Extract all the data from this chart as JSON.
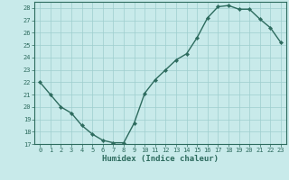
{
  "x": [
    0,
    1,
    2,
    3,
    4,
    5,
    6,
    7,
    8,
    9,
    10,
    11,
    12,
    13,
    14,
    15,
    16,
    17,
    18,
    19,
    20,
    21,
    22,
    23
  ],
  "y": [
    22,
    21,
    20,
    19.5,
    18.5,
    17.8,
    17.3,
    17.1,
    17.1,
    18.7,
    21.1,
    22.2,
    23.0,
    23.8,
    24.3,
    25.6,
    27.2,
    28.1,
    28.2,
    27.9,
    27.9,
    27.1,
    26.4,
    25.2
  ],
  "xlabel": "Humidex (Indice chaleur)",
  "ylim": [
    17,
    28.5
  ],
  "yticks": [
    17,
    18,
    19,
    20,
    21,
    22,
    23,
    24,
    25,
    26,
    27,
    28
  ],
  "xticks": [
    0,
    1,
    2,
    3,
    4,
    5,
    6,
    7,
    8,
    9,
    10,
    11,
    12,
    13,
    14,
    15,
    16,
    17,
    18,
    19,
    20,
    21,
    22,
    23
  ],
  "line_color": "#2d6b5e",
  "marker": "D",
  "marker_size": 2.2,
  "bg_color": "#c8eaea",
  "grid_color": "#9ecece",
  "text_color": "#2d6b5e",
  "tick_fontsize": 5.0,
  "xlabel_fontsize": 6.5
}
